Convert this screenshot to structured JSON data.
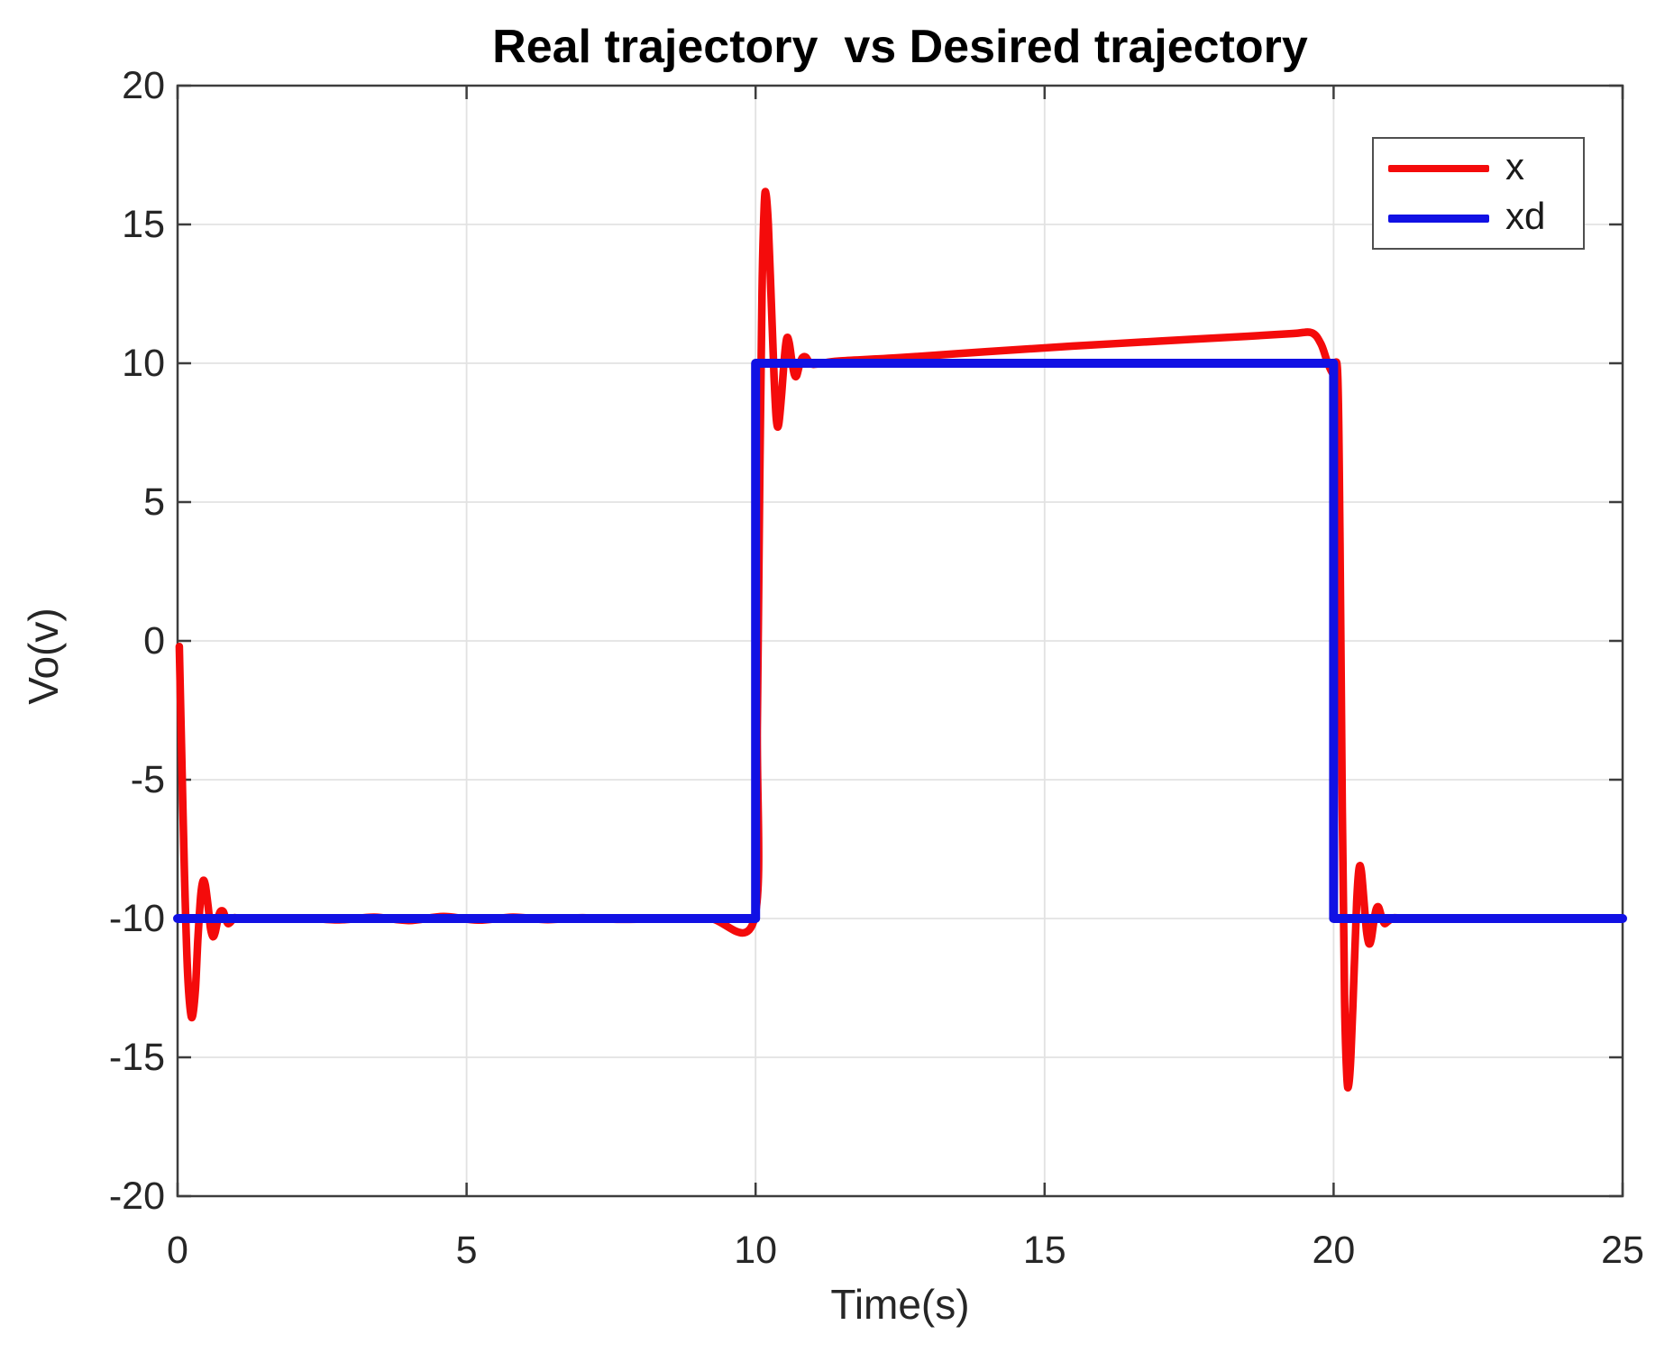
{
  "chart_data": {
    "type": "line",
    "title": "Real trajectory  vs Desired trajectory",
    "xlabel": "Time(s)",
    "ylabel": "Vo(v)",
    "xlim": [
      0,
      25
    ],
    "ylim": [
      -20,
      20
    ],
    "xticks": [
      0,
      5,
      10,
      15,
      20,
      25
    ],
    "yticks": [
      -20,
      -15,
      -10,
      -5,
      0,
      5,
      10,
      15,
      20
    ],
    "grid": true,
    "legend_position": "top-right",
    "axis_color": "#3d3d3d",
    "grid_color": "#e2e2e2",
    "tick_label_color": "#262626",
    "background": "#ffffff",
    "series": [
      {
        "name": "x",
        "color": "#f40b0b",
        "width": 8.5,
        "smooth": true,
        "points": [
          [
            0.03,
            -0.2
          ],
          [
            0.07,
            -4.0
          ],
          [
            0.12,
            -8.5
          ],
          [
            0.17,
            -11.8
          ],
          [
            0.22,
            -13.3
          ],
          [
            0.26,
            -13.5
          ],
          [
            0.31,
            -12.5
          ],
          [
            0.35,
            -10.8
          ],
          [
            0.4,
            -9.2
          ],
          [
            0.44,
            -8.65
          ],
          [
            0.48,
            -8.8
          ],
          [
            0.53,
            -9.6
          ],
          [
            0.57,
            -10.35
          ],
          [
            0.61,
            -10.65
          ],
          [
            0.65,
            -10.5
          ],
          [
            0.7,
            -10.0
          ],
          [
            0.74,
            -9.75
          ],
          [
            0.79,
            -9.75
          ],
          [
            0.83,
            -10.0
          ],
          [
            0.87,
            -10.18
          ],
          [
            0.92,
            -10.12
          ],
          [
            0.98,
            -9.97
          ],
          [
            1.1,
            -10.02
          ],
          [
            1.3,
            -9.99
          ],
          [
            1.6,
            -10.02
          ],
          [
            2.2,
            -9.98
          ],
          [
            2.8,
            -10.05
          ],
          [
            3.4,
            -9.95
          ],
          [
            4.0,
            -10.07
          ],
          [
            4.6,
            -9.93
          ],
          [
            5.2,
            -10.06
          ],
          [
            5.8,
            -9.95
          ],
          [
            6.4,
            -10.04
          ],
          [
            7.0,
            -9.97
          ],
          [
            7.6,
            -10.03
          ],
          [
            8.4,
            -10.0
          ],
          [
            9.2,
            -10.0
          ],
          [
            9.98,
            -10.0
          ],
          [
            10.03,
            -3.0
          ],
          [
            10.07,
            5.5
          ],
          [
            10.11,
            12.5
          ],
          [
            10.15,
            15.7
          ],
          [
            10.18,
            16.1
          ],
          [
            10.22,
            15.0
          ],
          [
            10.27,
            12.3
          ],
          [
            10.32,
            9.5
          ],
          [
            10.36,
            7.95
          ],
          [
            10.4,
            7.8
          ],
          [
            10.45,
            8.9
          ],
          [
            10.5,
            10.25
          ],
          [
            10.54,
            10.9
          ],
          [
            10.58,
            10.75
          ],
          [
            10.63,
            10.05
          ],
          [
            10.67,
            9.6
          ],
          [
            10.71,
            9.55
          ],
          [
            10.76,
            9.95
          ],
          [
            10.81,
            10.2
          ],
          [
            10.87,
            10.22
          ],
          [
            10.93,
            10.02
          ],
          [
            11.0,
            9.96
          ],
          [
            11.15,
            10.0
          ],
          [
            11.45,
            10.08
          ],
          [
            12.5,
            10.2
          ],
          [
            14.0,
            10.42
          ],
          [
            15.5,
            10.62
          ],
          [
            17.0,
            10.8
          ],
          [
            18.5,
            10.97
          ],
          [
            19.3,
            11.07
          ],
          [
            19.62,
            11.1
          ],
          [
            19.78,
            10.7
          ],
          [
            19.9,
            10.0
          ],
          [
            19.99,
            9.62
          ],
          [
            20.07,
            9.6
          ],
          [
            20.11,
            3.5
          ],
          [
            20.15,
            -6.0
          ],
          [
            20.19,
            -13.0
          ],
          [
            20.23,
            -15.7
          ],
          [
            20.26,
            -16.0
          ],
          [
            20.3,
            -14.9
          ],
          [
            20.35,
            -12.2
          ],
          [
            20.4,
            -9.4
          ],
          [
            20.44,
            -8.2
          ],
          [
            20.48,
            -8.3
          ],
          [
            20.53,
            -9.5
          ],
          [
            20.57,
            -10.45
          ],
          [
            20.61,
            -10.9
          ],
          [
            20.65,
            -10.75
          ],
          [
            20.7,
            -10.05
          ],
          [
            20.74,
            -9.65
          ],
          [
            20.78,
            -9.6
          ],
          [
            20.83,
            -9.95
          ],
          [
            20.88,
            -10.18
          ],
          [
            20.94,
            -10.1
          ],
          [
            21.05,
            -9.97
          ],
          [
            21.3,
            -10.02
          ],
          [
            21.8,
            -10.0
          ],
          [
            23.0,
            -10.0
          ],
          [
            25.0,
            -10.0
          ]
        ]
      },
      {
        "name": "xd",
        "color": "#1111e4",
        "width": 10,
        "smooth": false,
        "points": [
          [
            0,
            -10
          ],
          [
            10,
            -10
          ],
          [
            10,
            10
          ],
          [
            20,
            10
          ],
          [
            20,
            -10
          ],
          [
            25,
            -10
          ]
        ]
      }
    ]
  }
}
